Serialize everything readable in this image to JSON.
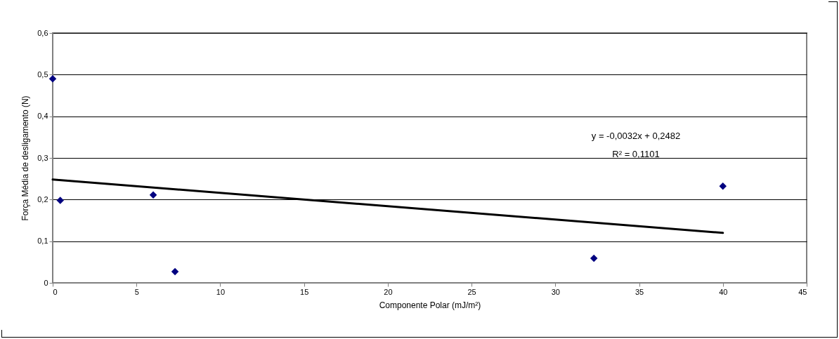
{
  "chart_data": {
    "type": "scatter",
    "xlabel": "Componente Polar (mJ/m²)",
    "ylabel": "Força Média de desligamento (N)",
    "xlim": [
      0,
      45
    ],
    "xticks": [
      0,
      5,
      10,
      15,
      20,
      25,
      30,
      35,
      40,
      45
    ],
    "ylim": [
      0,
      0.6
    ],
    "yticks": [
      0,
      {
        "value": 0.1,
        "label": "0,1"
      },
      {
        "value": 0.2,
        "label": "0,2"
      },
      {
        "value": 0.3,
        "label": "0,3"
      },
      {
        "value": 0.4,
        "label": "0,4"
      },
      {
        "value": 0.5,
        "label": "0,5"
      },
      {
        "value": 0.6,
        "label": "0,6"
      }
    ],
    "grid": "y",
    "annotations": [
      "y = -0,0032x + 0,2482",
      "R² = 0,1101"
    ],
    "series": [
      {
        "marker": "diamond",
        "color": "#000080",
        "x": [
          0,
          0.45,
          6,
          7.3,
          32.3,
          40
        ],
        "values": [
          0.49,
          0.198,
          0.211,
          0.027,
          0.059,
          0.232
        ]
      },
      {
        "type": "line",
        "color": "#000000",
        "x": [
          0,
          40
        ],
        "values": [
          0.248,
          0.12
        ]
      }
    ]
  }
}
